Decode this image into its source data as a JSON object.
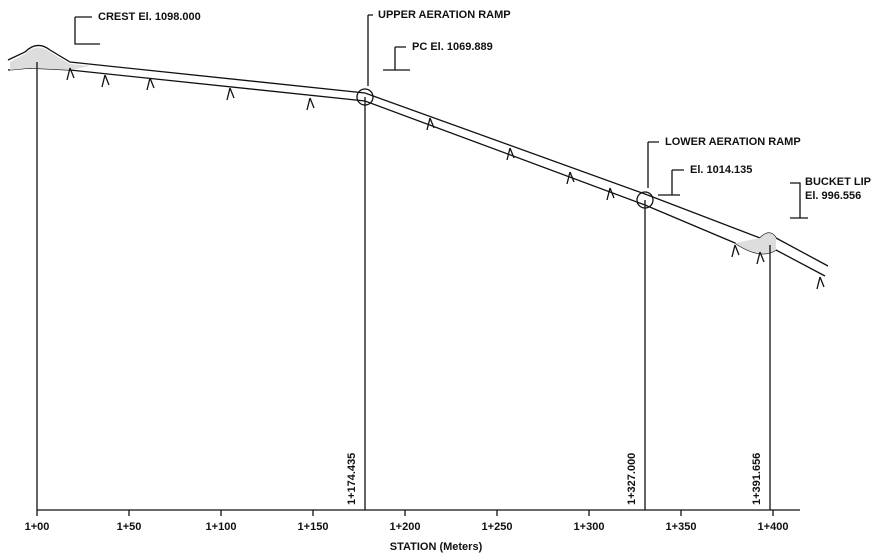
{
  "annotations": [
    {
      "lines": [
        "CREST El. 1098.000"
      ]
    },
    {
      "lines": [
        "UPPER AERATION RAMP"
      ]
    },
    {
      "lines": [
        "PC El. 1069.889"
      ]
    },
    {
      "lines": [
        "LOWER AERATION RAMP"
      ]
    },
    {
      "lines": [
        "El. 1014.135"
      ]
    },
    {
      "lines": [
        "BUCKET LIP",
        "El. 996.556"
      ]
    }
  ],
  "stations": [
    "1+174.435",
    "1+327.000",
    "1+391.656"
  ],
  "axis": {
    "ticks": [
      "1+00",
      "1+50",
      "1+100",
      "1+150",
      "1+200",
      "1+250",
      "1+300",
      "1+350",
      "1+400"
    ],
    "title": "STATION (Meters)"
  }
}
